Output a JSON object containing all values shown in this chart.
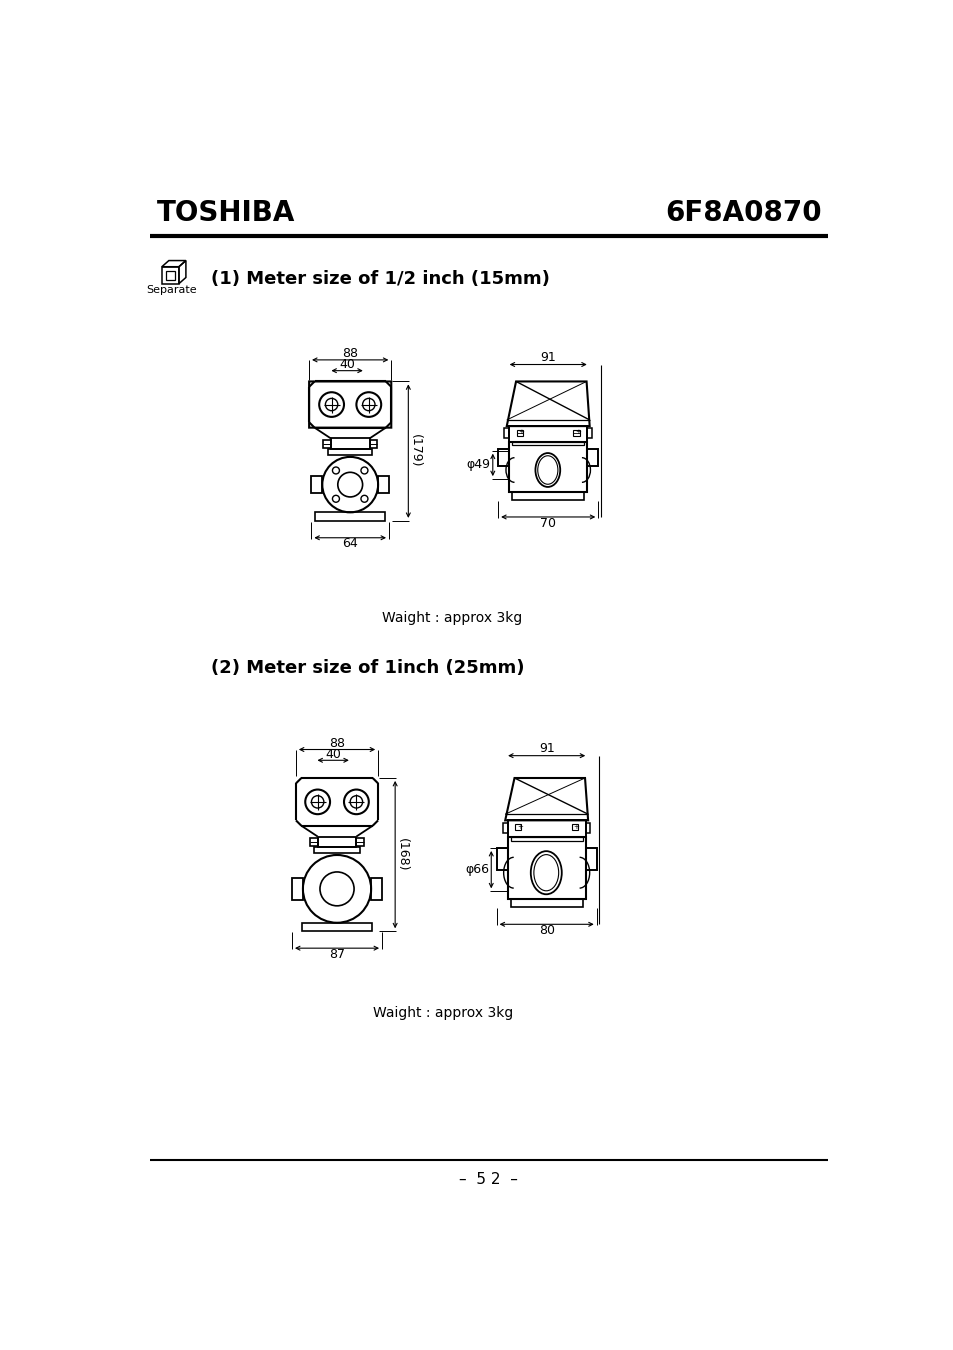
{
  "title_toshiba": "TOSHIBA",
  "title_code": "6F8A0870",
  "footer_text": "–  5 2  –",
  "section1_title": "(1) Meter size of 1/2 inch (15mm)",
  "section2_title": "(2) Meter size of 1inch (25mm)",
  "weight_text": "Waight : approx 3kg",
  "separate_label": "Separate",
  "bg_color": "#ffffff"
}
